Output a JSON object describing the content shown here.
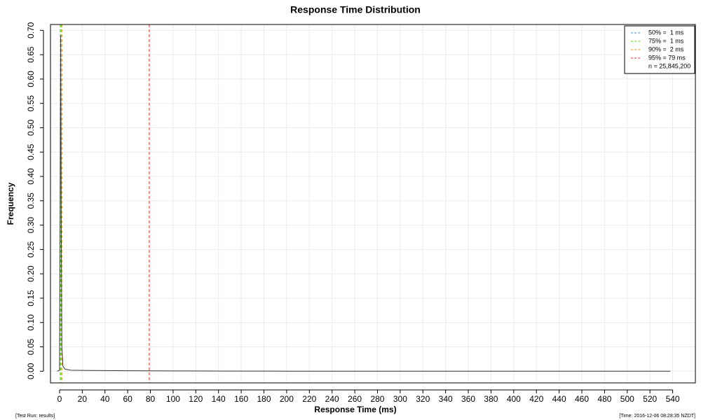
{
  "chart_data": {
    "type": "line",
    "title": "Response Time Distribution",
    "xlabel": "Response Time (ms)",
    "ylabel": "Frequency",
    "x": [
      -2,
      0,
      0.5,
      1,
      1.5,
      2,
      3,
      5,
      10,
      30,
      60,
      100,
      160,
      200,
      300,
      400,
      538
    ],
    "values": [
      0,
      0.002,
      0.3,
      0.69,
      0.3,
      0.05,
      0.01,
      0.004,
      0.002,
      0.0015,
      0.001,
      0.0006,
      0.0003,
      0.0001,
      0,
      0,
      0
    ],
    "color": "#333333",
    "xlim": [
      -8,
      560
    ],
    "ylim": [
      -0.024,
      0.712
    ],
    "xticks": [
      0,
      20,
      40,
      60,
      80,
      100,
      120,
      140,
      160,
      180,
      200,
      220,
      240,
      260,
      280,
      300,
      320,
      340,
      360,
      380,
      400,
      420,
      440,
      460,
      480,
      500,
      520,
      540
    ],
    "yticks": [
      {
        "value": 0,
        "label": "0.00"
      },
      0.05,
      {
        "value": 0.1,
        "label": "0.10"
      },
      0.15,
      {
        "value": 0.2,
        "label": "0.20"
      },
      0.25,
      {
        "value": 0.3,
        "label": "0.30"
      },
      0.35,
      {
        "value": 0.4,
        "label": "0.40"
      },
      0.45,
      {
        "value": 0.5,
        "label": "0.50"
      },
      0.55,
      {
        "value": 0.6,
        "label": "0.60"
      },
      0.65,
      {
        "value": 0.7,
        "label": "0.70"
      }
    ],
    "grid": true,
    "legend_position": "top-right",
    "percentiles": [
      {
        "label": "50% =  1 ms",
        "value": 1,
        "color": "#4f8fd0"
      },
      {
        "label": "75% =  1 ms",
        "value": 1,
        "color": "#66dd22"
      },
      {
        "label": "90% =  2 ms",
        "value": 2,
        "color": "#e8901c"
      },
      {
        "label": "95% = 79 ms",
        "value": 79,
        "color": "#e03030"
      }
    ],
    "legend_note": "n = 25,845,200",
    "footer_left": "[Test Run: results]",
    "footer_right": "[Time: 2016-12-06 08:28:35 NZDT]"
  }
}
